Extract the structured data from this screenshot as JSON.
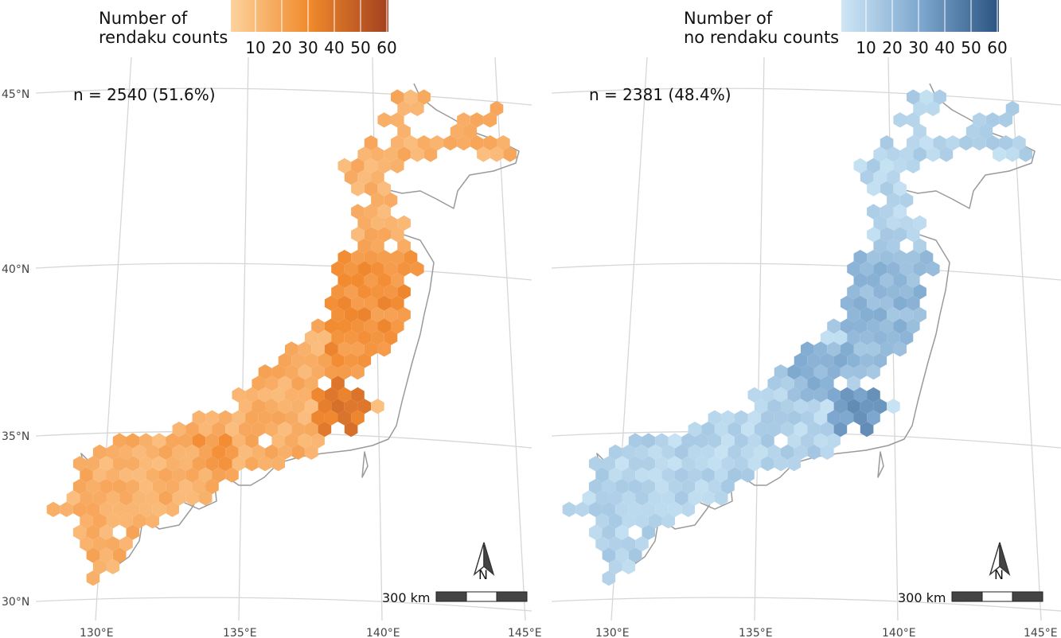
{
  "panels": [
    {
      "id": "rendaku",
      "legend_title_lines": [
        "Number of",
        "rendaku counts"
      ],
      "legend_ticks": [
        "10",
        "20",
        "30",
        "40",
        "50",
        "60"
      ],
      "n_label": "n = 2540 (51.6%)",
      "colors": {
        "low": "#fcc68b",
        "mid": "#f28a30",
        "high": "#a3401f"
      },
      "scale_label": "300 km",
      "north_label": "N"
    },
    {
      "id": "no-rendaku",
      "legend_title_lines": [
        "Number of",
        "no rendaku counts"
      ],
      "legend_ticks": [
        "10",
        "20",
        "30",
        "40",
        "50",
        "60"
      ],
      "n_label": "n = 2381 (48.4%)",
      "colors": {
        "low": "#c6e2f3",
        "mid": "#7ea8cf",
        "high": "#2b5381"
      },
      "scale_label": "300 km",
      "north_label": "N"
    }
  ],
  "axes": {
    "lat_labels": [
      "45°N",
      "40°N",
      "35°N",
      "30°N"
    ],
    "lon_labels": [
      "130°E",
      "135°E",
      "140°E",
      "145°E"
    ]
  }
}
